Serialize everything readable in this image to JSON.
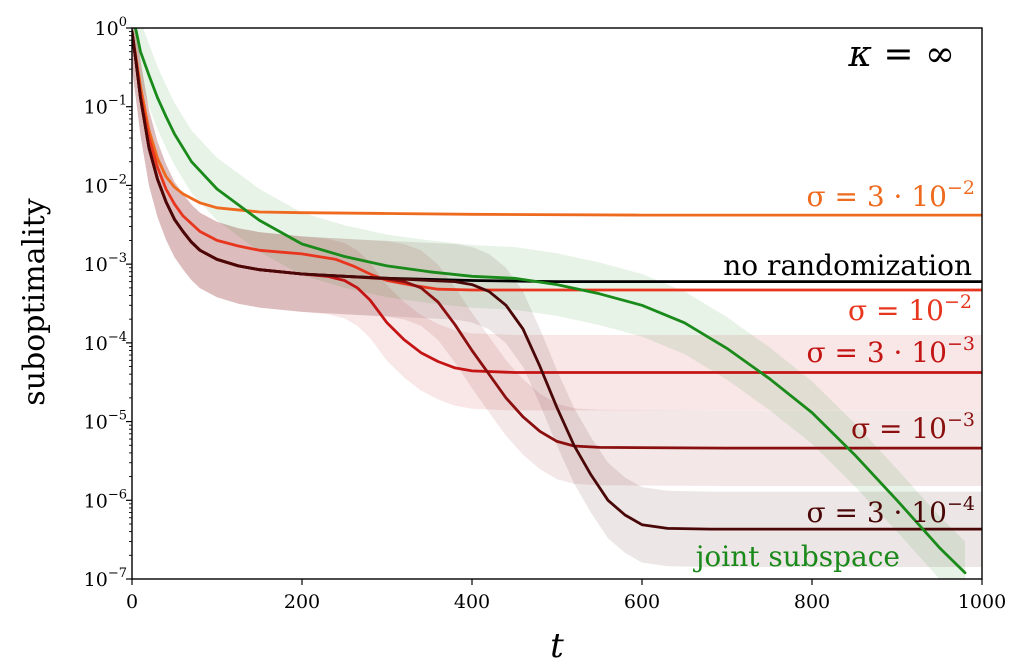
{
  "chart_data": {
    "type": "line",
    "title": "",
    "xlabel": "t",
    "ylabel": "suboptimality",
    "xlim": [
      0,
      1000
    ],
    "ylim": [
      1e-07,
      1
    ],
    "yscale": "log",
    "x_ticks": [
      0,
      200,
      400,
      600,
      800,
      1000
    ],
    "x_tick_labels": [
      "0",
      "200",
      "400",
      "600",
      "800",
      "1000"
    ],
    "y_ticks": [
      1,
      0.1,
      0.01,
      0.001,
      0.0001,
      1e-05,
      1e-06,
      1e-07
    ],
    "y_tick_labels": [
      {
        "base": "10",
        "exp": "0"
      },
      {
        "base": "10",
        "exp": "−1"
      },
      {
        "base": "10",
        "exp": "−2"
      },
      {
        "base": "10",
        "exp": "−3"
      },
      {
        "base": "10",
        "exp": "−4"
      },
      {
        "base": "10",
        "exp": "−5"
      },
      {
        "base": "10",
        "exp": "−6"
      },
      {
        "base": "10",
        "exp": "−7"
      }
    ],
    "grid": false,
    "corner_label": "κ = ∞",
    "series": [
      {
        "name": "σ = 3 · 10⁻²",
        "label_main": "σ = 3 · 10",
        "label_sup": "−2",
        "color": "#ee6a1f",
        "band": false,
        "points": [
          [
            0,
            0.9
          ],
          [
            5,
            0.4
          ],
          [
            10,
            0.18
          ],
          [
            20,
            0.05
          ],
          [
            30,
            0.022
          ],
          [
            40,
            0.013
          ],
          [
            50,
            0.0095
          ],
          [
            60,
            0.0078
          ],
          [
            80,
            0.006
          ],
          [
            100,
            0.0052
          ],
          [
            150,
            0.0046
          ],
          [
            200,
            0.0045
          ],
          [
            300,
            0.0044
          ],
          [
            400,
            0.0043
          ],
          [
            600,
            0.0042
          ],
          [
            800,
            0.0042
          ],
          [
            1000,
            0.0042
          ]
        ]
      },
      {
        "name": "no randomization",
        "label_main": "no randomization",
        "label_sup": "",
        "color": "#000000",
        "band": false,
        "points": [
          [
            0,
            0.9
          ],
          [
            5,
            0.35
          ],
          [
            10,
            0.13
          ],
          [
            20,
            0.03
          ],
          [
            30,
            0.012
          ],
          [
            40,
            0.0062
          ],
          [
            50,
            0.0037
          ],
          [
            60,
            0.0026
          ],
          [
            70,
            0.0019
          ],
          [
            80,
            0.0015
          ],
          [
            100,
            0.00115
          ],
          [
            125,
            0.00095
          ],
          [
            150,
            0.00085
          ],
          [
            200,
            0.00075
          ],
          [
            250,
            0.0007
          ],
          [
            300,
            0.00066
          ],
          [
            400,
            0.00062
          ],
          [
            500,
            0.0006
          ],
          [
            700,
            0.0006
          ],
          [
            1000,
            0.0006
          ]
        ]
      },
      {
        "name": "σ = 10⁻²",
        "label_main": "σ = 10",
        "label_sup": "−2",
        "color": "#e8351e",
        "band": false,
        "points": [
          [
            0,
            0.9
          ],
          [
            5,
            0.38
          ],
          [
            10,
            0.15
          ],
          [
            20,
            0.04
          ],
          [
            30,
            0.017
          ],
          [
            40,
            0.009
          ],
          [
            50,
            0.0058
          ],
          [
            60,
            0.0041
          ],
          [
            80,
            0.0026
          ],
          [
            100,
            0.002
          ],
          [
            125,
            0.0017
          ],
          [
            150,
            0.0015
          ],
          [
            200,
            0.00135
          ],
          [
            240,
            0.00115
          ],
          [
            260,
            0.00095
          ],
          [
            280,
            0.00075
          ],
          [
            300,
            0.00062
          ],
          [
            330,
            0.00054
          ],
          [
            360,
            0.00048
          ],
          [
            400,
            0.00047
          ],
          [
            500,
            0.00047
          ],
          [
            700,
            0.00047
          ],
          [
            1000,
            0.00047
          ]
        ]
      },
      {
        "name": "σ = 3 · 10⁻³",
        "label_main": "σ = 3 · 10",
        "label_sup": "−3",
        "color": "#c41414",
        "band": true,
        "band_upper": 3,
        "band_lower": 0.33,
        "points": [
          [
            0,
            0.9
          ],
          [
            5,
            0.35
          ],
          [
            10,
            0.13
          ],
          [
            20,
            0.03
          ],
          [
            30,
            0.012
          ],
          [
            40,
            0.0062
          ],
          [
            50,
            0.0037
          ],
          [
            60,
            0.0026
          ],
          [
            70,
            0.0019
          ],
          [
            80,
            0.0015
          ],
          [
            100,
            0.00115
          ],
          [
            125,
            0.00095
          ],
          [
            150,
            0.00085
          ],
          [
            200,
            0.00075
          ],
          [
            230,
            0.0007
          ],
          [
            250,
            0.00062
          ],
          [
            265,
            0.0005
          ],
          [
            280,
            0.00035
          ],
          [
            300,
            0.00018
          ],
          [
            320,
            0.00011
          ],
          [
            340,
            7.5e-05
          ],
          [
            360,
            5.8e-05
          ],
          [
            380,
            4.8e-05
          ],
          [
            400,
            4.4e-05
          ],
          [
            450,
            4.2e-05
          ],
          [
            500,
            4.2e-05
          ],
          [
            700,
            4.2e-05
          ],
          [
            1000,
            4.2e-05
          ]
        ]
      },
      {
        "name": "σ = 10⁻³",
        "label_main": "σ = 10",
        "label_sup": "−3",
        "color": "#8b0f0f",
        "band": true,
        "band_upper": 3,
        "band_lower": 0.33,
        "points": [
          [
            0,
            0.9
          ],
          [
            5,
            0.35
          ],
          [
            10,
            0.13
          ],
          [
            20,
            0.03
          ],
          [
            30,
            0.012
          ],
          [
            40,
            0.0062
          ],
          [
            50,
            0.0037
          ],
          [
            60,
            0.0026
          ],
          [
            70,
            0.0019
          ],
          [
            80,
            0.0015
          ],
          [
            100,
            0.00115
          ],
          [
            125,
            0.00095
          ],
          [
            150,
            0.00085
          ],
          [
            200,
            0.00075
          ],
          [
            250,
            0.0007
          ],
          [
            300,
            0.00065
          ],
          [
            320,
            0.0006
          ],
          [
            340,
            0.0005
          ],
          [
            360,
            0.00033
          ],
          [
            380,
            0.00017
          ],
          [
            400,
            8e-05
          ],
          [
            420,
            4e-05
          ],
          [
            440,
            2e-05
          ],
          [
            460,
            1.15e-05
          ],
          [
            480,
            7.5e-06
          ],
          [
            500,
            5.6e-06
          ],
          [
            520,
            4.9e-06
          ],
          [
            550,
            4.7e-06
          ],
          [
            700,
            4.6e-06
          ],
          [
            1000,
            4.6e-06
          ]
        ]
      },
      {
        "name": "σ = 3 · 10⁻⁴",
        "label_main": "σ = 3 · 10",
        "label_sup": "−4",
        "color": "#4a0707",
        "band": true,
        "band_upper": 3,
        "band_lower": 0.33,
        "points": [
          [
            0,
            0.9
          ],
          [
            5,
            0.35
          ],
          [
            10,
            0.13
          ],
          [
            20,
            0.03
          ],
          [
            30,
            0.012
          ],
          [
            40,
            0.0062
          ],
          [
            50,
            0.0037
          ],
          [
            60,
            0.0026
          ],
          [
            70,
            0.0019
          ],
          [
            80,
            0.0015
          ],
          [
            100,
            0.00115
          ],
          [
            125,
            0.00095
          ],
          [
            150,
            0.00085
          ],
          [
            200,
            0.00075
          ],
          [
            250,
            0.0007
          ],
          [
            300,
            0.00066
          ],
          [
            350,
            0.00062
          ],
          [
            380,
            0.0006
          ],
          [
            400,
            0.00055
          ],
          [
            420,
            0.00045
          ],
          [
            440,
            0.0003
          ],
          [
            460,
            0.00015
          ],
          [
            480,
            5e-05
          ],
          [
            500,
            1.5e-05
          ],
          [
            520,
            5e-06
          ],
          [
            540,
            2.1e-06
          ],
          [
            560,
            1e-06
          ],
          [
            580,
            6.5e-07
          ],
          [
            600,
            4.9e-07
          ],
          [
            630,
            4.4e-07
          ],
          [
            680,
            4.3e-07
          ],
          [
            800,
            4.3e-07
          ],
          [
            1000,
            4.3e-07
          ]
        ]
      },
      {
        "name": "joint subspace",
        "label_main": "joint subspace",
        "label_sup": "",
        "color": "#1a8a1a",
        "band": true,
        "band_upper": 2.5,
        "band_lower": 0.4,
        "points": [
          [
            0,
            1.5
          ],
          [
            5,
            0.9
          ],
          [
            10,
            0.5
          ],
          [
            20,
            0.25
          ],
          [
            30,
            0.13
          ],
          [
            40,
            0.075
          ],
          [
            50,
            0.045
          ],
          [
            70,
            0.02
          ],
          [
            100,
            0.009
          ],
          [
            150,
            0.0036
          ],
          [
            200,
            0.0018
          ],
          [
            250,
            0.00125
          ],
          [
            300,
            0.00095
          ],
          [
            350,
            0.0008
          ],
          [
            400,
            0.0007
          ],
          [
            450,
            0.00066
          ],
          [
            500,
            0.00055
          ],
          [
            550,
            0.00042
          ],
          [
            600,
            0.0003
          ],
          [
            650,
            0.00018
          ],
          [
            700,
            8.5e-05
          ],
          [
            750,
            3.5e-05
          ],
          [
            800,
            1.3e-05
          ],
          [
            850,
            3.8e-06
          ],
          [
            900,
            1e-06
          ],
          [
            950,
            2.5e-07
          ],
          [
            980,
            1.2e-07
          ]
        ]
      }
    ]
  }
}
